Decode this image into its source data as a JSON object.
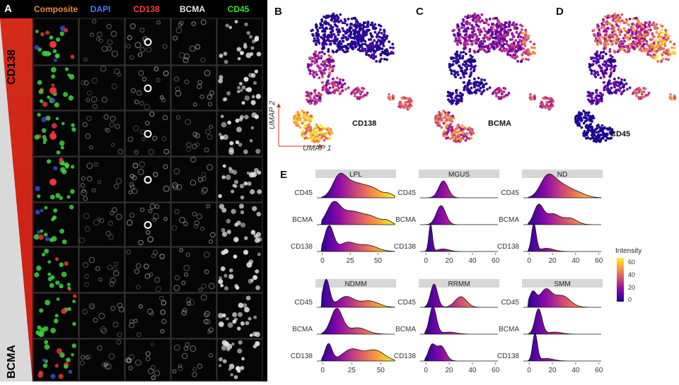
{
  "panel_a": {
    "letter": "A",
    "columns": [
      {
        "label": "Composite",
        "color": "#f08a3c"
      },
      {
        "label": "DAPI",
        "color": "#4a78ff"
      },
      {
        "label": "CD138",
        "color": "#ff3b3b"
      },
      {
        "label": "BCMA",
        "color": "#e8e8e8"
      },
      {
        "label": "CD45",
        "color": "#37e237"
      }
    ],
    "gradient_top_label": "CD138",
    "gradient_bottom_label": "BCMA",
    "row_count": 8
  },
  "umap_panels": [
    {
      "letter": "B",
      "marker": "CD138"
    },
    {
      "letter": "C",
      "marker": "BCMA"
    },
    {
      "letter": "D",
      "marker": "CD45"
    }
  ],
  "umap_axes": {
    "y": "UMAP 2",
    "x": "UMAP 1"
  },
  "panel_e": {
    "letter": "E",
    "legend_title": "Intensity",
    "legend_ticks": [
      "60",
      "40",
      "20",
      "0"
    ],
    "y_categories": [
      "CD45",
      "BCMA",
      "CD138"
    ]
  },
  "chart_data": [
    {
      "type": "area",
      "subtype": "ridgeline",
      "title": "LPL",
      "x_ticks": [
        "0",
        "25",
        "50"
      ],
      "xlim": [
        -5,
        65
      ],
      "categories": [
        "CD45",
        "BCMA",
        "CD138"
      ],
      "series": [
        {
          "name": "CD45",
          "peaks": [
            [
              15,
              0.9,
              6
            ],
            [
              28,
              0.65,
              9
            ],
            [
              45,
              0.4,
              8
            ],
            [
              60,
              0.15,
              4
            ]
          ]
        },
        {
          "name": "BCMA",
          "peaks": [
            [
              10,
              1.0,
              6
            ],
            [
              25,
              0.55,
              8
            ],
            [
              42,
              0.4,
              9
            ],
            [
              58,
              0.15,
              4
            ]
          ]
        },
        {
          "name": "CD138",
          "peaks": [
            [
              6,
              1.2,
              4
            ],
            [
              22,
              0.4,
              7
            ],
            [
              40,
              0.3,
              9
            ]
          ]
        }
      ]
    },
    {
      "type": "area",
      "subtype": "ridgeline",
      "title": "MGUS",
      "x_ticks": [
        "0",
        "20",
        "40",
        "60"
      ],
      "xlim": [
        -5,
        62
      ],
      "categories": [
        "CD45",
        "BCMA",
        "CD138"
      ],
      "series": [
        {
          "name": "CD45",
          "peaks": [
            [
              15,
              0.8,
              4
            ]
          ]
        },
        {
          "name": "BCMA",
          "peaks": [
            [
              13,
              0.9,
              4
            ]
          ]
        },
        {
          "name": "CD138",
          "peaks": [
            [
              4,
              1.3,
              1.5
            ],
            [
              15,
              0.12,
              5
            ]
          ]
        }
      ]
    },
    {
      "type": "area",
      "subtype": "ridgeline",
      "title": "ND",
      "x_ticks": [
        "0",
        "20",
        "40",
        "60"
      ],
      "xlim": [
        -5,
        62
      ],
      "categories": [
        "CD45",
        "BCMA",
        "CD138"
      ],
      "series": [
        {
          "name": "CD45",
          "peaks": [
            [
              15,
              0.8,
              6
            ],
            [
              25,
              0.6,
              8
            ],
            [
              40,
              0.25,
              8
            ]
          ]
        },
        {
          "name": "BCMA",
          "peaks": [
            [
              8,
              0.9,
              4
            ],
            [
              20,
              0.5,
              6
            ],
            [
              35,
              0.3,
              6
            ]
          ]
        },
        {
          "name": "CD138",
          "peaks": [
            [
              4,
              1.3,
              2
            ],
            [
              15,
              0.15,
              6
            ]
          ]
        }
      ]
    },
    {
      "type": "area",
      "subtype": "ridgeline",
      "title": "NDMM",
      "x_ticks": [
        "0",
        "25",
        "50"
      ],
      "xlim": [
        -5,
        62
      ],
      "categories": [
        "CD45",
        "BCMA",
        "CD138"
      ],
      "series": [
        {
          "name": "CD45",
          "peaks": [
            [
              3,
              1.3,
              3
            ],
            [
              20,
              0.5,
              7
            ],
            [
              40,
              0.3,
              8
            ]
          ]
        },
        {
          "name": "BCMA",
          "peaks": [
            [
              12,
              1.2,
              5
            ],
            [
              30,
              0.3,
              8
            ]
          ]
        },
        {
          "name": "CD138",
          "peaks": [
            [
              5,
              0.8,
              3
            ],
            [
              25,
              0.55,
              8
            ],
            [
              45,
              0.5,
              8
            ]
          ]
        }
      ]
    },
    {
      "type": "area",
      "subtype": "ridgeline",
      "title": "RRMM",
      "x_ticks": [
        "0",
        "20",
        "40",
        "60"
      ],
      "xlim": [
        -5,
        62
      ],
      "categories": [
        "CD45",
        "BCMA",
        "CD138"
      ],
      "series": [
        {
          "name": "CD45",
          "peaks": [
            [
              7,
              1.1,
              3
            ],
            [
              30,
              0.5,
              5
            ]
          ]
        },
        {
          "name": "BCMA",
          "peaks": [
            [
              6,
              1.3,
              3
            ],
            [
              20,
              0.1,
              6
            ]
          ]
        },
        {
          "name": "CD138",
          "peaks": [
            [
              5,
              0.7,
              3
            ],
            [
              13,
              0.7,
              4
            ]
          ]
        }
      ]
    },
    {
      "type": "area",
      "subtype": "ridgeline",
      "title": "SMM",
      "x_ticks": [
        "0",
        "20",
        "40",
        "60"
      ],
      "xlim": [
        -5,
        62
      ],
      "categories": [
        "CD45",
        "BCMA",
        "CD138"
      ],
      "series": [
        {
          "name": "CD45",
          "peaks": [
            [
              3,
              0.7,
              3
            ],
            [
              14,
              0.8,
              5
            ],
            [
              28,
              0.55,
              7
            ]
          ]
        },
        {
          "name": "BCMA",
          "peaks": [
            [
              8,
              1.2,
              3
            ],
            [
              22,
              0.1,
              6
            ]
          ]
        },
        {
          "name": "CD138",
          "peaks": [
            [
              5,
              1.3,
              2
            ],
            [
              15,
              0.12,
              6
            ]
          ]
        }
      ]
    }
  ]
}
